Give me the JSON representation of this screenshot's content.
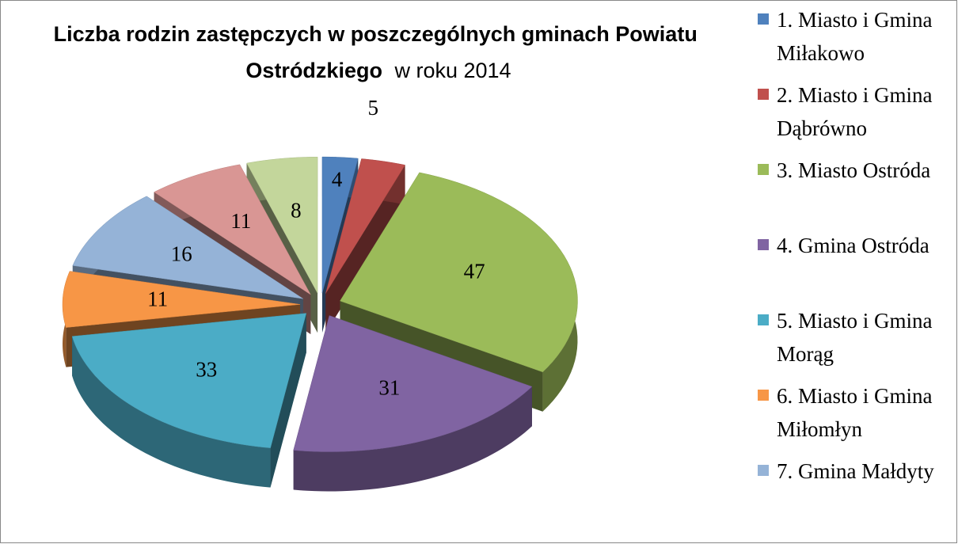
{
  "chart_data": {
    "type": "pie",
    "title": {
      "line1": "Liczba rodzin zastępczych w poszczególnych gminach Powiatu",
      "bold": "Ostródzkiego",
      "rest": "w roku 2014"
    },
    "categories": [
      "1. Miasto i Gmina Miłakowo",
      "2. Miasto i Gmina Dąbrówno",
      "3. Miasto Ostróda",
      "4. Gmina Ostróda",
      "5. Miasto i Gmina Morąg",
      "6. Miasto i Gmina Miłomłyn",
      "7. Gmina Małdyty",
      null,
      null
    ],
    "values": [
      4,
      5,
      47,
      31,
      33,
      11,
      16,
      11,
      8
    ],
    "colors": [
      "#4f81bd",
      "#c0504d",
      "#9bbb59",
      "#8064a2",
      "#4bacc6",
      "#f79646",
      "#95b3d7",
      "#d99694",
      "#c3d69b"
    ],
    "legend": "right"
  }
}
